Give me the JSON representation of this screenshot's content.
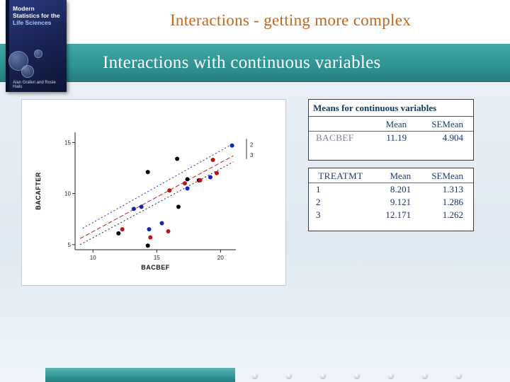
{
  "slide": {
    "title": "Interactions - getting more complex",
    "subtitle": "Interactions with continuous variables"
  },
  "book_cover": {
    "title_line1": "Modern",
    "title_line2": "Statistics for the",
    "title_line3": "Life Sciences",
    "authors": "Alan Grafen and Rosie Hails"
  },
  "chart_data": {
    "type": "scatter",
    "title": "",
    "xlabel": "BACBEF",
    "ylabel": "BACAFTER",
    "xlim": [
      8.6,
      21.2
    ],
    "ylim": [
      4.5,
      16
    ],
    "xticks": [
      10,
      15,
      20
    ],
    "yticks": [
      5,
      10,
      15
    ],
    "grid": false,
    "legend": "none",
    "series": [
      {
        "name": "1",
        "color": "#000000",
        "points": [
          [
            16.6,
            13.4
          ],
          [
            14.3,
            12.1
          ],
          [
            17.4,
            11.4
          ],
          [
            18.3,
            11.3
          ],
          [
            16.7,
            8.7
          ],
          [
            12.0,
            6.1
          ],
          [
            14.3,
            4.9
          ]
        ]
      },
      {
        "name": "2",
        "color": "#c01212",
        "points": [
          [
            19.4,
            13.3
          ],
          [
            19.7,
            12.0
          ],
          [
            18.4,
            11.3
          ],
          [
            17.2,
            11.0
          ],
          [
            16.0,
            10.3
          ],
          [
            12.3,
            6.5
          ],
          [
            15.9,
            6.3
          ],
          [
            14.5,
            5.7
          ]
        ]
      },
      {
        "name": "3",
        "color": "#1524b8",
        "points": [
          [
            20.9,
            14.7
          ],
          [
            19.2,
            11.6
          ],
          [
            17.4,
            10.5
          ],
          [
            13.8,
            8.7
          ],
          [
            13.2,
            8.5
          ],
          [
            15.4,
            7.1
          ],
          [
            14.4,
            6.5
          ]
        ]
      }
    ],
    "lines": [
      {
        "group": "1",
        "color": "#222222",
        "dash": "2,3",
        "x1": 9.0,
        "y1": 5.0,
        "x2": 21.0,
        "y2": 13.1
      },
      {
        "group": "2",
        "color": "#b02222",
        "dash": "6,3",
        "x1": 9.0,
        "y1": 5.6,
        "x2": 21.0,
        "y2": 13.7
      },
      {
        "group": "3",
        "color": "#2230b0",
        "dash": "2,3",
        "x1": 9.2,
        "y1": 6.6,
        "x2": 21.0,
        "y2": 14.9
      }
    ],
    "ref_labels": [
      {
        "text": "2",
        "y": 14.8
      },
      {
        "text": "3",
        "y": 13.8
      }
    ]
  },
  "tables": [
    {
      "title": "Means for continuous variables",
      "header": [
        "",
        "Mean",
        "SEMean"
      ],
      "rows": [
        [
          "BACBEF",
          "11.19",
          "4.904"
        ]
      ]
    },
    {
      "header": [
        "TREATMT",
        "Mean",
        "SEMean"
      ],
      "rows": [
        [
          "1",
          "8.201",
          "1.313"
        ],
        [
          "2",
          "9.121",
          "1.286"
        ],
        [
          "3",
          "12.171",
          "1.262"
        ]
      ]
    }
  ],
  "footer": {
    "dot_count": 7
  }
}
